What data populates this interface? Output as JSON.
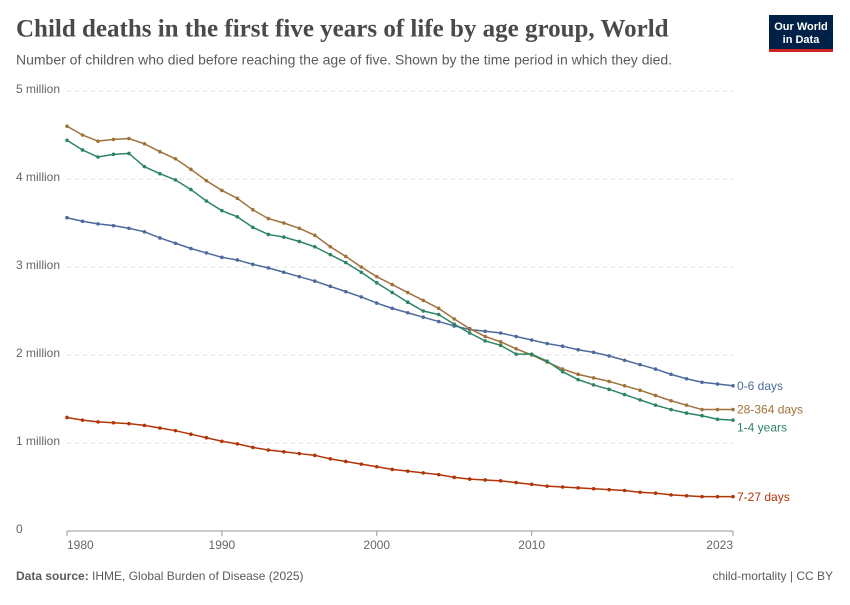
{
  "header": {
    "title": "Child deaths in the first five years of life by age group, World",
    "subtitle": "Number of children who died before reaching the age of five. Shown by the time period in which they died.",
    "logo": [
      "Our World",
      "in Data"
    ]
  },
  "chart_data": {
    "type": "line",
    "x": [
      1980,
      1981,
      1982,
      1983,
      1984,
      1985,
      1986,
      1987,
      1988,
      1989,
      1990,
      1991,
      1992,
      1993,
      1994,
      1995,
      1996,
      1997,
      1998,
      1999,
      2000,
      2001,
      2002,
      2003,
      2004,
      2005,
      2006,
      2007,
      2008,
      2009,
      2010,
      2011,
      2012,
      2013,
      2014,
      2015,
      2016,
      2017,
      2018,
      2019,
      2020,
      2021,
      2022,
      2023
    ],
    "xlim": [
      1980,
      2023
    ],
    "xticks": [
      1980,
      1990,
      2000,
      2010,
      2023
    ],
    "ylim": [
      0,
      5000000
    ],
    "yticks": [
      0,
      {
        "value": 1000000,
        "label": "1 million"
      },
      {
        "value": 2000000,
        "label": "2 million"
      },
      {
        "value": 3000000,
        "label": "3 million"
      },
      {
        "value": 4000000,
        "label": "4 million"
      },
      {
        "value": 5000000,
        "label": "5 million"
      }
    ],
    "grid": true,
    "series": [
      {
        "name": "0-6 days",
        "color": "#4c6a9c",
        "values": [
          3560000,
          3520000,
          3490000,
          3470000,
          3440000,
          3400000,
          3330000,
          3270000,
          3210000,
          3160000,
          3110000,
          3080000,
          3030000,
          2990000,
          2940000,
          2890000,
          2840000,
          2780000,
          2720000,
          2660000,
          2590000,
          2530000,
          2480000,
          2430000,
          2380000,
          2330000,
          2290000,
          2270000,
          2250000,
          2210000,
          2170000,
          2130000,
          2100000,
          2060000,
          2030000,
          1990000,
          1940000,
          1890000,
          1840000,
          1780000,
          1730000,
          1690000,
          1670000,
          1650000
        ]
      },
      {
        "name": "28-364 days",
        "color": "#a0713a",
        "values": [
          4600000,
          4500000,
          4430000,
          4450000,
          4460000,
          4400000,
          4310000,
          4230000,
          4110000,
          3980000,
          3870000,
          3780000,
          3650000,
          3550000,
          3500000,
          3440000,
          3360000,
          3230000,
          3120000,
          3000000,
          2890000,
          2800000,
          2710000,
          2620000,
          2530000,
          2410000,
          2300000,
          2210000,
          2150000,
          2070000,
          2000000,
          1920000,
          1840000,
          1780000,
          1740000,
          1700000,
          1650000,
          1600000,
          1540000,
          1480000,
          1430000,
          1380000,
          1380000,
          1380000
        ]
      },
      {
        "name": "1-4 years",
        "color": "#2c8465",
        "values": [
          4440000,
          4330000,
          4250000,
          4280000,
          4290000,
          4140000,
          4060000,
          3990000,
          3880000,
          3750000,
          3640000,
          3570000,
          3450000,
          3370000,
          3340000,
          3290000,
          3230000,
          3140000,
          3050000,
          2940000,
          2820000,
          2710000,
          2600000,
          2500000,
          2460000,
          2350000,
          2250000,
          2160000,
          2110000,
          2010000,
          2010000,
          1930000,
          1810000,
          1720000,
          1660000,
          1610000,
          1550000,
          1490000,
          1430000,
          1380000,
          1340000,
          1310000,
          1270000,
          1260000
        ]
      },
      {
        "name": "7-27 days",
        "color": "#b13507",
        "values": [
          1290000,
          1260000,
          1240000,
          1230000,
          1220000,
          1200000,
          1170000,
          1140000,
          1100000,
          1060000,
          1020000,
          990000,
          950000,
          920000,
          900000,
          880000,
          860000,
          820000,
          790000,
          760000,
          730000,
          700000,
          680000,
          660000,
          640000,
          610000,
          590000,
          580000,
          570000,
          550000,
          530000,
          510000,
          500000,
          490000,
          480000,
          470000,
          460000,
          440000,
          430000,
          410000,
          400000,
          390000,
          390000,
          390000
        ]
      }
    ]
  },
  "footer": {
    "source_label": "Data source:",
    "source": "IHME, Global Burden of Disease (2025)",
    "credit": "child-mortality | CC BY"
  }
}
